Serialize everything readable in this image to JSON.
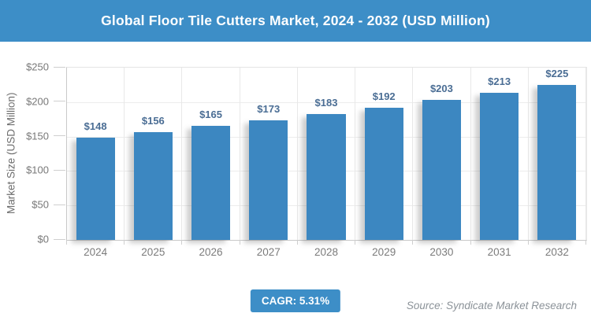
{
  "header": {
    "title": "Global Floor Tile Cutters Market, 2024 - 2032 (USD Million)"
  },
  "chart_data": {
    "type": "bar",
    "title": "Global Floor Tile Cutters Market, 2024 - 2032 (USD Million)",
    "categories": [
      "2024",
      "2025",
      "2026",
      "2027",
      "2028",
      "2029",
      "2030",
      "2031",
      "2032"
    ],
    "values": [
      148,
      156,
      165,
      173,
      183,
      192,
      203,
      213,
      225
    ],
    "value_labels": [
      "$148",
      "$156",
      "$165",
      "$173",
      "$183",
      "$192",
      "$203",
      "$213",
      "$225"
    ],
    "xlabel": "",
    "ylabel": "Market Size (USD Million)",
    "ylim": [
      0,
      250
    ],
    "ytick_step": 50,
    "yticks": [
      "$250",
      "$200",
      "$150",
      "$100",
      "$50",
      "$0"
    ],
    "grid": "horizontal and vertical light gray gridlines",
    "legend": "none"
  },
  "footer": {
    "cagr_label": "CAGR: 5.31%",
    "source": "Source: Syndicate Market Research"
  },
  "colors": {
    "header_bg": "#3d8ec7",
    "bar": "#3c87c1",
    "value_label": "#4a6d94",
    "badge_bg": "#3d8ec7",
    "axis_text": "#787878",
    "grid_line": "#e8e8e8",
    "source_text": "#8b9298"
  }
}
